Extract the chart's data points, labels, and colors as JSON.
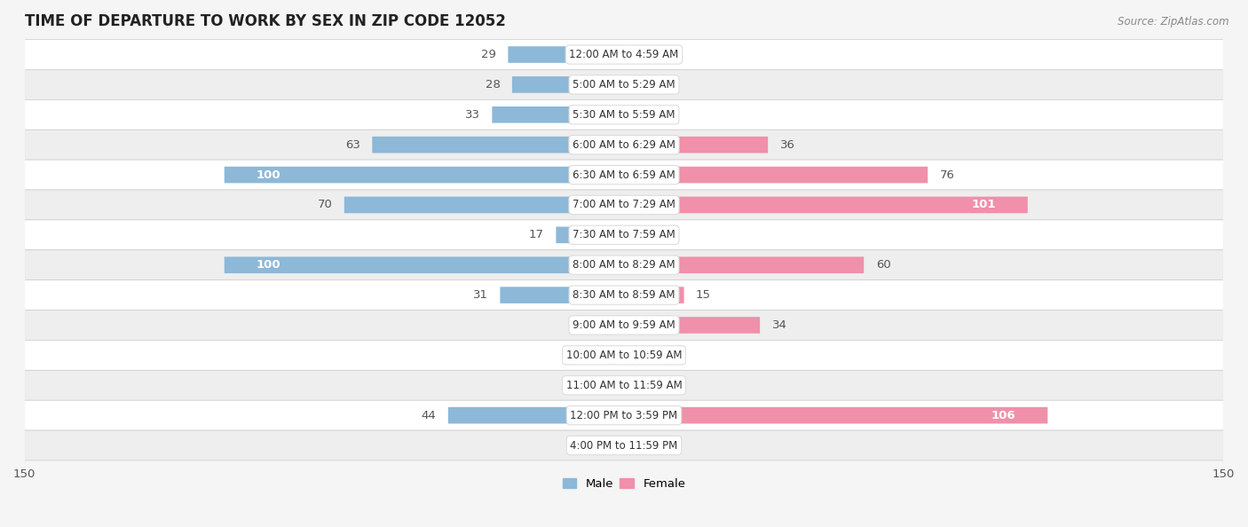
{
  "title": "TIME OF DEPARTURE TO WORK BY SEX IN ZIP CODE 12052",
  "source": "Source: ZipAtlas.com",
  "categories": [
    "12:00 AM to 4:59 AM",
    "5:00 AM to 5:29 AM",
    "5:30 AM to 5:59 AM",
    "6:00 AM to 6:29 AM",
    "6:30 AM to 6:59 AM",
    "7:00 AM to 7:29 AM",
    "7:30 AM to 7:59 AM",
    "8:00 AM to 8:29 AM",
    "8:30 AM to 8:59 AM",
    "9:00 AM to 9:59 AM",
    "10:00 AM to 10:59 AM",
    "11:00 AM to 11:59 AM",
    "12:00 PM to 3:59 PM",
    "4:00 PM to 11:59 PM"
  ],
  "male_values": [
    29,
    28,
    33,
    63,
    100,
    70,
    17,
    100,
    31,
    0,
    0,
    0,
    44,
    0
  ],
  "female_values": [
    0,
    0,
    0,
    36,
    76,
    101,
    5,
    60,
    15,
    34,
    0,
    0,
    106,
    0
  ],
  "male_color": "#8db8d8",
  "female_color": "#f090aa",
  "male_color_label_inside": "#6699bb",
  "row_alt_colors": [
    "#f5f5f5",
    "#e8e8e8"
  ],
  "row_border_color": "#cccccc",
  "bg_color": "#f0f0f0",
  "axis_limit": 150,
  "bar_height": 0.52,
  "label_fontsize": 9.5,
  "title_fontsize": 12,
  "source_fontsize": 8.5,
  "legend_fontsize": 9.5,
  "axis_label_fontsize": 9.5,
  "category_label_fontsize": 8.5
}
